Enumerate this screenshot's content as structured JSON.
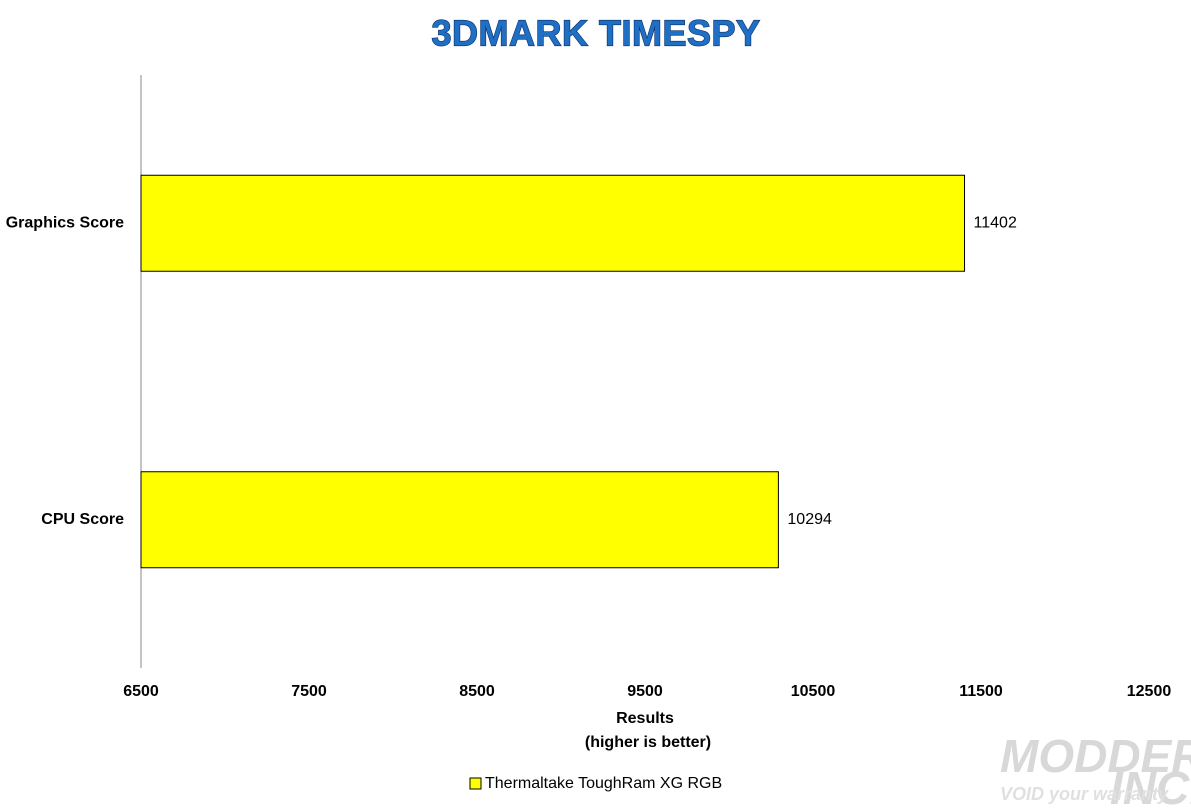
{
  "chart_data": {
    "type": "hbar",
    "title": "3DMARK TIMESPY",
    "categories": [
      "Graphics Score",
      "CPU Score"
    ],
    "series": [
      {
        "name": "Thermaltake ToughRam XG RGB",
        "color": "#ffff00",
        "values": [
          11402,
          10294
        ]
      }
    ],
    "xlim": [
      6500,
      12500
    ],
    "xticks": [
      6500,
      7500,
      8500,
      9500,
      10500,
      11500,
      12500
    ],
    "xlabel": "Results",
    "xlabel_note": "(higher is better)",
    "legend": "bottom",
    "watermark": {
      "main": "MODDERS",
      "suffix": "INC.",
      "tag": "VOID your warranty"
    }
  }
}
